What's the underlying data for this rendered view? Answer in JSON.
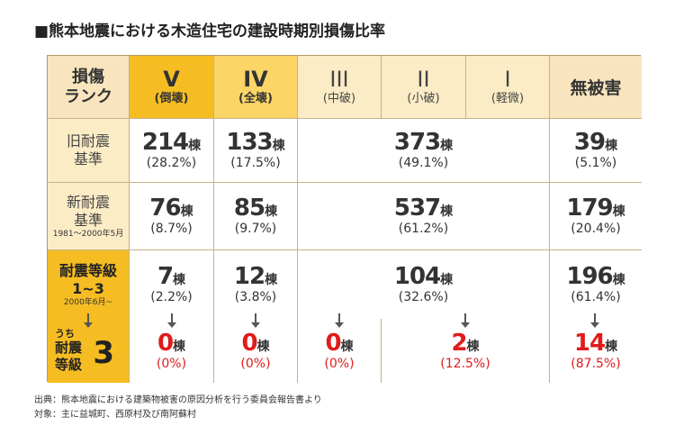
{
  "title": "■熊本地震における木造住宅の建設時期別損傷比率",
  "header": {
    "rank_label_line1": "損傷",
    "rank_label_line2": "ランク",
    "ranks": [
      {
        "main": "V",
        "sub": "(倒壊)"
      },
      {
        "main": "IV",
        "sub": "(全壊)"
      },
      {
        "main": "III",
        "sub": "(中破)"
      },
      {
        "main": "II",
        "sub": "(小破)"
      },
      {
        "main": "I",
        "sub": "(軽微)"
      }
    ],
    "no_damage": "無被害"
  },
  "rows": [
    {
      "label_line1": "旧耐震",
      "label_line2": "基準",
      "note": "",
      "v": {
        "num": "214",
        "unit": "棟",
        "pct": "(28.2%)"
      },
      "iv": {
        "num": "133",
        "unit": "棟",
        "pct": "(17.5%)"
      },
      "mid": {
        "num": "373",
        "unit": "棟",
        "pct": "(49.1%)"
      },
      "none": {
        "num": "39",
        "unit": "棟",
        "pct": "(5.1%)"
      }
    },
    {
      "label_line1": "新耐震",
      "label_line2": "基準",
      "note": "1981〜2000年5月",
      "v": {
        "num": "76",
        "unit": "棟",
        "pct": "(8.7%)"
      },
      "iv": {
        "num": "85",
        "unit": "棟",
        "pct": "(9.7%)"
      },
      "mid": {
        "num": "537",
        "unit": "棟",
        "pct": "(61.2%)"
      },
      "none": {
        "num": "179",
        "unit": "棟",
        "pct": "(20.4%)"
      }
    },
    {
      "label_line1": "耐震等級",
      "label_line2": "1~3",
      "note": "2000年6月~",
      "v": {
        "num": "7",
        "unit": "棟",
        "pct": "(2.2%)"
      },
      "iv": {
        "num": "12",
        "unit": "棟",
        "pct": "(3.8%)"
      },
      "mid": {
        "num": "104",
        "unit": "棟",
        "pct": "(32.6%)"
      },
      "none": {
        "num": "196",
        "unit": "棟",
        "pct": "(61.4%)"
      }
    }
  ],
  "subset": {
    "prefix": "うち",
    "label_line1": "耐震",
    "label_line2": "等級",
    "grade": "3",
    "v": {
      "num": "0",
      "unit": "棟",
      "pct": "(0%)"
    },
    "iv": {
      "num": "0",
      "unit": "棟",
      "pct": "(0%)"
    },
    "iii": {
      "num": "0",
      "unit": "棟",
      "pct": "(0%)"
    },
    "ii_i": {
      "num": "2",
      "unit": "棟",
      "pct": "(12.5%)"
    },
    "none": {
      "num": "14",
      "unit": "棟",
      "pct": "(87.5%)"
    }
  },
  "colors": {
    "accent": "#f6bd22",
    "accent_light": "#fbd566",
    "pale": "#fcecc6",
    "red": "#e01b1b"
  },
  "footer": {
    "source": "出典：熊本地震における建築物被害の原因分析を行う委員会報告書より",
    "target": "対象：主に益城町、西原村及び南阿蘇村"
  }
}
